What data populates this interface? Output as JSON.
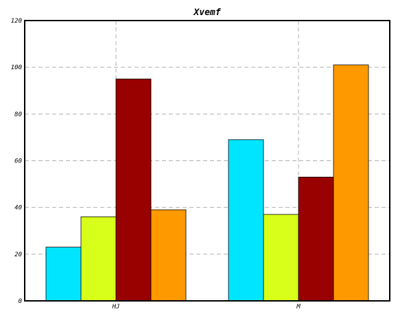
{
  "chart_data": {
    "type": "bar",
    "title": "Xvemf",
    "xlabel": "",
    "ylabel": "",
    "categories": [
      "HJ",
      "M"
    ],
    "series": [
      {
        "color": "#00e5ff",
        "values": [
          23,
          69
        ]
      },
      {
        "color": "#d8ff1a",
        "values": [
          36,
          37
        ]
      },
      {
        "color": "#990000",
        "values": [
          95,
          53
        ]
      },
      {
        "color": "#ff9900",
        "values": [
          39,
          101
        ]
      }
    ],
    "ylim": [
      0,
      120
    ],
    "yticks": [
      "0",
      "20",
      "40",
      "60",
      "80",
      "100",
      "120"
    ],
    "grid": true,
    "legend": "none"
  }
}
